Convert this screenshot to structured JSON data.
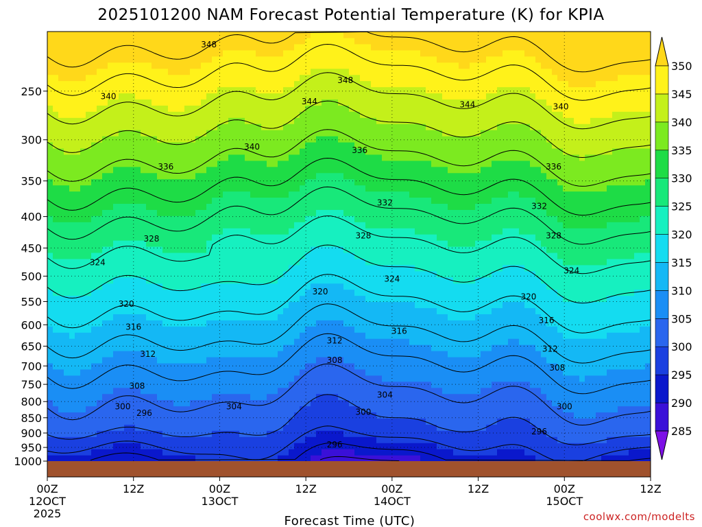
{
  "chart_data": {
    "type": "heatmap",
    "title": "2025101200 NAM Forecast Potential Temperature (K) for KPIA",
    "xlabel": "Forecast Time (UTC)",
    "ylabel": "",
    "credit": "coolwx.com/modelts",
    "x_range_hours": [
      0,
      84
    ],
    "y_range_hpa": [
      1000,
      200
    ],
    "y_ticks": [
      250,
      300,
      350,
      400,
      450,
      500,
      550,
      600,
      650,
      700,
      750,
      800,
      850,
      900,
      950,
      1000
    ],
    "x_ticks": [
      {
        "hour": 0,
        "lines": [
          "00Z",
          "12OCT",
          "2025"
        ]
      },
      {
        "hour": 12,
        "lines": [
          "12Z"
        ]
      },
      {
        "hour": 24,
        "lines": [
          "00Z",
          "13OCT"
        ]
      },
      {
        "hour": 36,
        "lines": [
          "12Z"
        ]
      },
      {
        "hour": 48,
        "lines": [
          "00Z",
          "14OCT"
        ]
      },
      {
        "hour": 60,
        "lines": [
          "12Z"
        ]
      },
      {
        "hour": 72,
        "lines": [
          "00Z",
          "15OCT"
        ]
      },
      {
        "hour": 84,
        "lines": [
          "12Z"
        ]
      }
    ],
    "colorbar": {
      "levels": [
        285,
        290,
        295,
        300,
        305,
        310,
        315,
        320,
        325,
        330,
        335,
        340,
        345,
        350
      ],
      "colors": [
        "#7d10e6",
        "#3a10d8",
        "#0a18cc",
        "#1a40e0",
        "#2a66ee",
        "#1a8ef5",
        "#14b8f5",
        "#14dcf0",
        "#16f0c0",
        "#18e87a",
        "#1edc46",
        "#7cea20",
        "#c4f01a",
        "#fff21a",
        "#ffd81a"
      ]
    },
    "contour_labels": [
      {
        "value": "348",
        "hour": 22.5,
        "p": 210
      },
      {
        "value": "348",
        "hour": 41.5,
        "p": 240
      },
      {
        "value": "344",
        "hour": 36.5,
        "p": 260
      },
      {
        "value": "344",
        "hour": 58.5,
        "p": 263
      },
      {
        "value": "340",
        "hour": 8.5,
        "p": 255
      },
      {
        "value": "340",
        "hour": 71.5,
        "p": 265
      },
      {
        "value": "340",
        "hour": 28.5,
        "p": 308
      },
      {
        "value": "336",
        "hour": 43.5,
        "p": 312
      },
      {
        "value": "336",
        "hour": 16.5,
        "p": 332
      },
      {
        "value": "336",
        "hour": 70.5,
        "p": 332
      },
      {
        "value": "332",
        "hour": 47.0,
        "p": 380
      },
      {
        "value": "332",
        "hour": 68.5,
        "p": 385
      },
      {
        "value": "328",
        "hour": 14.5,
        "p": 435
      },
      {
        "value": "328",
        "hour": 44.0,
        "p": 430
      },
      {
        "value": "328",
        "hour": 70.5,
        "p": 430
      },
      {
        "value": "324",
        "hour": 7.0,
        "p": 475
      },
      {
        "value": "324",
        "hour": 48.0,
        "p": 505
      },
      {
        "value": "324",
        "hour": 73.0,
        "p": 490
      },
      {
        "value": "320",
        "hour": 38.0,
        "p": 530
      },
      {
        "value": "320",
        "hour": 11.0,
        "p": 555
      },
      {
        "value": "320",
        "hour": 67.0,
        "p": 540
      },
      {
        "value": "316",
        "hour": 69.5,
        "p": 590
      },
      {
        "value": "316",
        "hour": 12.0,
        "p": 605
      },
      {
        "value": "316",
        "hour": 49.0,
        "p": 614
      },
      {
        "value": "312",
        "hour": 40.0,
        "p": 637
      },
      {
        "value": "312",
        "hour": 14.0,
        "p": 670
      },
      {
        "value": "312",
        "hour": 70.0,
        "p": 657
      },
      {
        "value": "308",
        "hour": 40.0,
        "p": 685
      },
      {
        "value": "308",
        "hour": 71.0,
        "p": 705
      },
      {
        "value": "308",
        "hour": 12.5,
        "p": 755
      },
      {
        "value": "304",
        "hour": 47.0,
        "p": 780
      },
      {
        "value": "304",
        "hour": 26.0,
        "p": 815
      },
      {
        "value": "300",
        "hour": 10.5,
        "p": 815
      },
      {
        "value": "300",
        "hour": 44.0,
        "p": 832
      },
      {
        "value": "300",
        "hour": 72.0,
        "p": 815
      },
      {
        "value": "296",
        "hour": 13.5,
        "p": 835
      },
      {
        "value": "296",
        "hour": 68.5,
        "p": 895
      },
      {
        "value": "296",
        "hour": 40.0,
        "p": 940
      }
    ]
  }
}
